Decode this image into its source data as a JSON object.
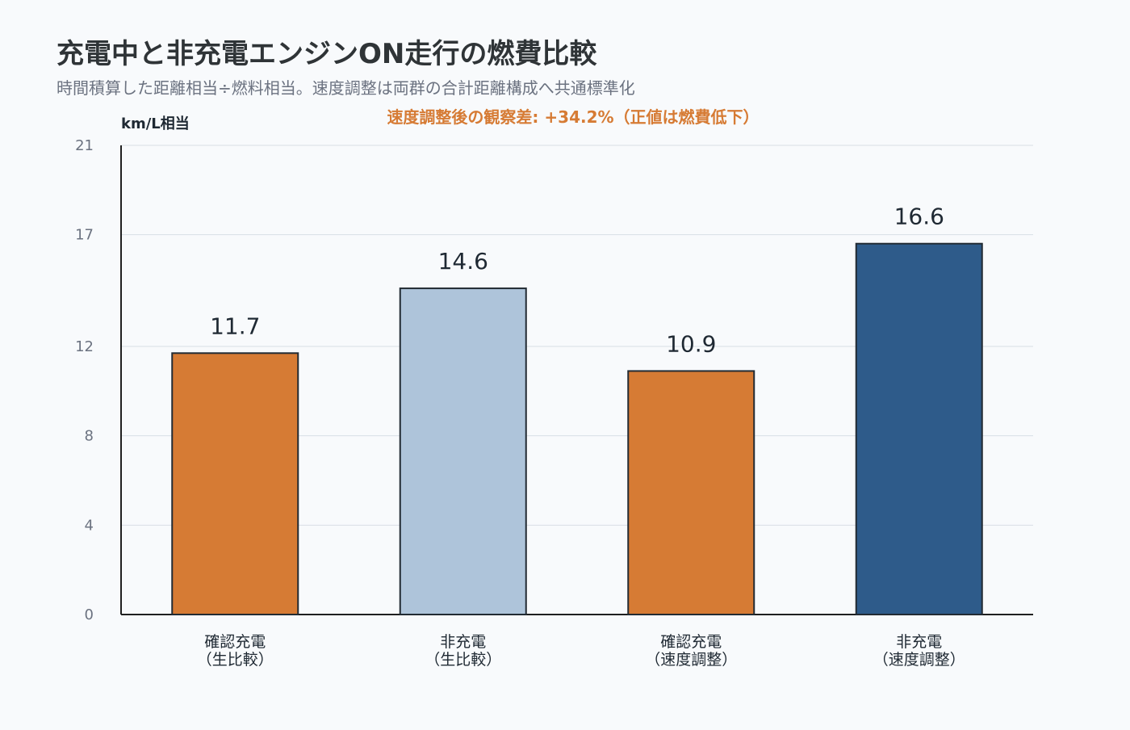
{
  "chart_data": {
    "type": "bar",
    "title": "充電中と非充電エンジンON走行の燃費比較",
    "subtitle": "時間積算した距離相当÷燃料相当。速度調整は両群の合計距離構成へ共通標準化",
    "annotation": "速度調整後の観察差: +34.2%（正値は燃費低下）",
    "xlabel": "",
    "ylabel": "km/L相当",
    "ylim": [
      0,
      21
    ],
    "yticks": [
      0,
      4,
      8,
      12,
      17,
      21
    ],
    "grid": true,
    "categories": [
      [
        "確認充電",
        "（生比較）"
      ],
      [
        "非充電",
        "（生比較）"
      ],
      [
        "確認充電",
        "（速度調整）"
      ],
      [
        "非充電",
        "（速度調整）"
      ]
    ],
    "values": [
      11.7,
      14.6,
      10.9,
      16.6
    ],
    "data_labels": [
      "11.7",
      "14.6",
      "10.9",
      "16.6"
    ],
    "colors": [
      "#d67b34",
      "#aec4da",
      "#d67b34",
      "#2e5b8a"
    ]
  }
}
